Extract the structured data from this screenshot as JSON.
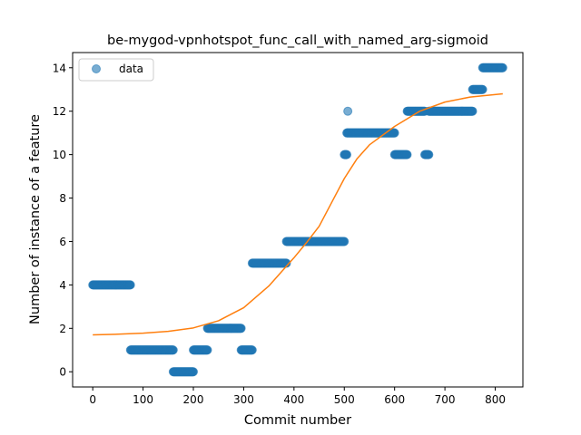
{
  "chart_data": {
    "type": "scatter",
    "title": "be-mygod-vpnhotspot_func_call_with_named_arg-sigmoid",
    "xlabel": "Commit number",
    "ylabel": "Number of instance of a feature",
    "xlim": [
      -40,
      855
    ],
    "ylim": [
      -0.7,
      14.7
    ],
    "xticks": [
      0,
      100,
      200,
      300,
      400,
      500,
      600,
      700,
      800
    ],
    "yticks": [
      0,
      2,
      4,
      6,
      8,
      10,
      12,
      14
    ],
    "grid": false,
    "legend": {
      "placement": "top-left",
      "entries": [
        "data"
      ]
    },
    "colors": {
      "data": "#1f77b4",
      "fit": "#ff7f0e"
    },
    "data_segments": [
      {
        "x_start": 0,
        "x_end": 75,
        "y": 4
      },
      {
        "x_start": 75,
        "x_end": 160,
        "y": 1
      },
      {
        "x_start": 160,
        "x_end": 200,
        "y": 0
      },
      {
        "x_start": 200,
        "x_end": 228,
        "y": 1
      },
      {
        "x_start": 228,
        "x_end": 295,
        "y": 2
      },
      {
        "x_start": 295,
        "x_end": 317,
        "y": 1
      },
      {
        "x_start": 317,
        "x_end": 385,
        "y": 5
      },
      {
        "x_start": 385,
        "x_end": 500,
        "y": 6
      },
      {
        "x_start": 500,
        "x_end": 505,
        "y": 10
      },
      {
        "x_start": 505,
        "x_end": 600,
        "y": 11
      },
      {
        "x_start": 600,
        "x_end": 625,
        "y": 10
      },
      {
        "x_start": 625,
        "x_end": 660,
        "y": 12
      },
      {
        "x_start": 660,
        "x_end": 668,
        "y": 10
      },
      {
        "x_start": 668,
        "x_end": 755,
        "y": 12
      },
      {
        "x_start": 755,
        "x_end": 775,
        "y": 13
      },
      {
        "x_start": 775,
        "x_end": 815,
        "y": 14
      }
    ],
    "extra_points": [
      {
        "x": 507,
        "y": 12
      }
    ],
    "fit_curve": {
      "name": "sigmoid",
      "x": [
        0,
        50,
        100,
        150,
        200,
        250,
        300,
        350,
        400,
        425,
        450,
        475,
        500,
        525,
        550,
        600,
        650,
        700,
        750,
        815
      ],
      "y": [
        1.7,
        1.73,
        1.78,
        1.86,
        2.02,
        2.35,
        2.95,
        3.95,
        5.25,
        5.95,
        6.7,
        7.8,
        8.9,
        9.8,
        10.45,
        11.3,
        12.0,
        12.42,
        12.65,
        12.8
      ]
    }
  }
}
